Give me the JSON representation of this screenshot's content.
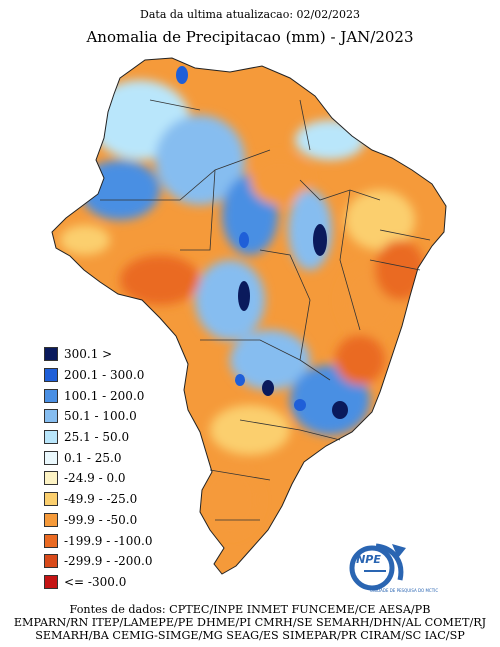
{
  "header": {
    "updated": "Data da ultima atualizacao: 02/02/2023",
    "title": "Anomalia de Precipitacao (mm) - JAN/2023"
  },
  "legend": {
    "items": [
      {
        "label": "300.1 >",
        "color": "#0a1a5c"
      },
      {
        "label": "200.1 - 300.0",
        "color": "#1f5fd8"
      },
      {
        "label": "100.1 - 200.0",
        "color": "#4a8fe3"
      },
      {
        "label": "50.1 - 100.0",
        "color": "#86bdf0"
      },
      {
        "label": "25.1 - 50.0",
        "color": "#b9e6fb"
      },
      {
        "label": "0.1 - 25.0",
        "color": "#eaf8fd"
      },
      {
        "label": "-24.9 - 0.0",
        "color": "#fdf3c4"
      },
      {
        "label": "-49.9 - -25.0",
        "color": "#fbcf6e"
      },
      {
        "label": "-99.9 - -50.0",
        "color": "#f59a3a"
      },
      {
        "label": "-199.9 - -100.0",
        "color": "#ea6a22"
      },
      {
        "label": "-299.9 - -200.0",
        "color": "#d84a1a"
      },
      {
        "label": "<= -300.0",
        "color": "#c41414"
      }
    ]
  },
  "logo": {
    "name": "INPE",
    "subtitle": "UNIDADE DE PESQUISA DO MCTIC"
  },
  "sources": [
    "Fontes de dados: CPTEC/INPE INMET FUNCEME/CE AESA/PB",
    "EMPARN/RN ITEP/LAMEPE/PE DHME/PI CMRH/SE SEMARH/DHN/AL COMET/RJ",
    "SEMARH/BA CEMIG-SIMGE/MG SEAG/ES SIMEPAR/PR CIRAM/SC IAC/SP"
  ]
}
